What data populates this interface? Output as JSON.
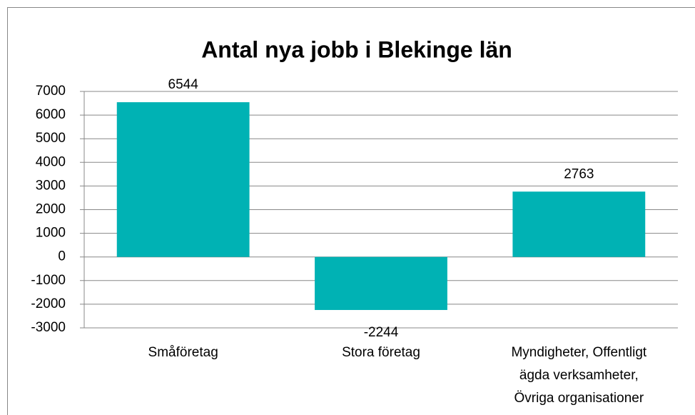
{
  "chart_data": {
    "type": "bar",
    "title": "Antal nya jobb i Blekinge län",
    "categories": [
      "Småföretag",
      "Stora företag",
      "Myndigheter, Offentligt ägda verksamheter, Övriga organisationer"
    ],
    "values": [
      6544,
      -2244,
      2763
    ],
    "color": "#00b2b4",
    "ylim": [
      -3000,
      7000
    ],
    "yticks": [
      -3000,
      -2000,
      -1000,
      0,
      1000,
      2000,
      3000,
      4000,
      5000,
      6000,
      7000
    ],
    "grid": true
  }
}
